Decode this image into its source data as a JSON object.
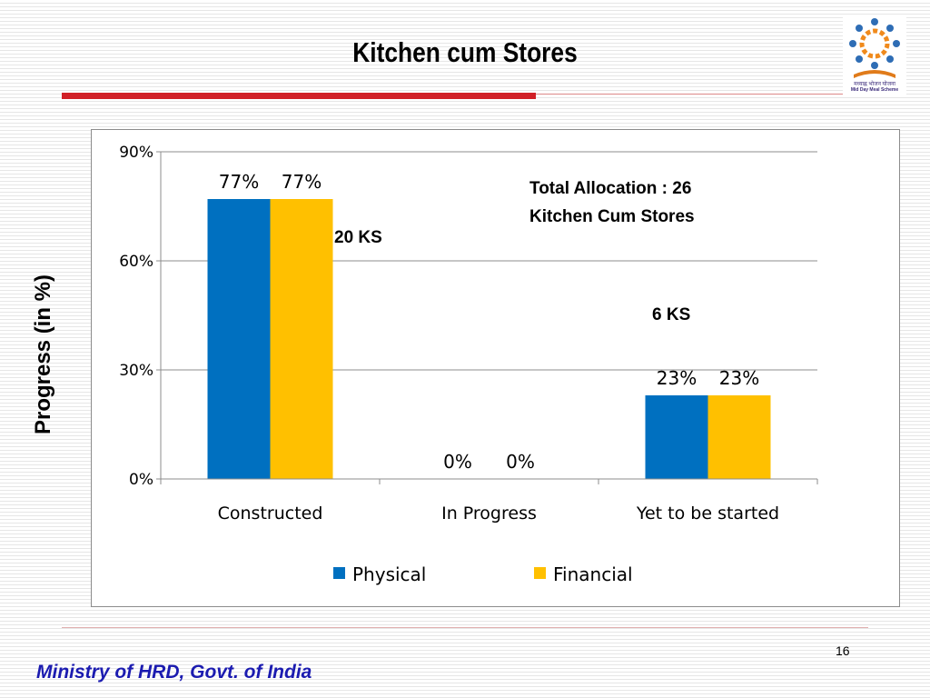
{
  "slide": {
    "title": "Kitchen cum Stores",
    "page_number": "16",
    "footer": "Ministry of HRD, Govt. of India",
    "logo": {
      "line1": "मध्याह्न भोजन योजना",
      "line2": "Mid Day Meal Scheme"
    }
  },
  "annotations": {
    "total_line1": "Total Allocation : 26",
    "total_line2": "Kitchen Cum Stores",
    "constructed_count": "20 KS",
    "pending_count": "6 KS"
  },
  "chart_data": {
    "type": "bar",
    "categories": [
      "Constructed",
      "In Progress",
      "Yet to be started"
    ],
    "series": [
      {
        "name": "Physical",
        "values": [
          77,
          0,
          23
        ],
        "color": "#0070c0"
      },
      {
        "name": "Financial",
        "values": [
          77,
          0,
          23
        ],
        "color": "#ffc000"
      }
    ],
    "data_labels": [
      [
        "77%",
        "0%",
        "23%"
      ],
      [
        "77%",
        "0%",
        "23%"
      ]
    ],
    "ylabel": "Progress (in %)",
    "ylim": [
      0,
      90
    ],
    "yticks": [
      0,
      30,
      60,
      90
    ],
    "ytick_labels": [
      "0%",
      "30%",
      "60%",
      "90%"
    ],
    "grid": true,
    "legend": "bottom"
  }
}
